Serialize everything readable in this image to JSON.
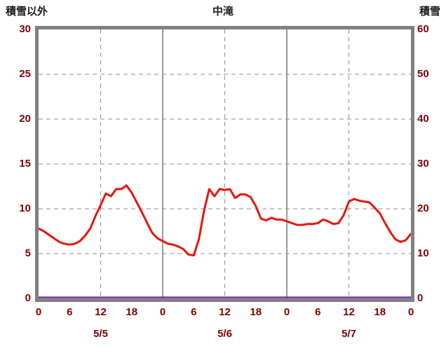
{
  "chart_data": {
    "type": "line",
    "title": "中滝",
    "left_axis": {
      "label": "積雪以外",
      "min": 0,
      "max": 30,
      "ticks": [
        0,
        5,
        10,
        15,
        20,
        25,
        30
      ]
    },
    "right_axis": {
      "label": "積雪",
      "min": 0,
      "max": 60,
      "ticks": [
        0,
        10,
        20,
        30,
        40,
        50,
        60
      ]
    },
    "x_axis": {
      "hours_total": 72,
      "tick_interval_hours": 6,
      "tick_labels": [
        "0",
        "6",
        "12",
        "18",
        "0",
        "6",
        "12",
        "18",
        "0",
        "6",
        "12",
        "18",
        "0"
      ],
      "day_labels": [
        "5/5",
        "5/6",
        "5/7"
      ]
    },
    "grid": {
      "h_dashed_values_left": [
        5,
        10,
        15,
        20,
        25
      ],
      "v_dashed_hours": [
        12,
        36,
        60
      ],
      "v_solid_hours": [
        24,
        48
      ]
    },
    "series": [
      {
        "name": "積雪以外",
        "axis": "left",
        "color": "#e8150d",
        "x_step_hours": 1,
        "values": [
          7.8,
          7.5,
          7.1,
          6.7,
          6.3,
          6.1,
          6.0,
          6.1,
          6.4,
          7.0,
          7.8,
          9.2,
          10.4,
          11.7,
          11.4,
          12.2,
          12.2,
          12.6,
          11.8,
          10.7,
          9.6,
          8.4,
          7.3,
          6.7,
          6.4,
          6.1,
          6.0,
          5.8,
          5.5,
          4.9,
          4.8,
          6.6,
          9.8,
          12.2,
          11.4,
          12.2,
          12.1,
          12.2,
          11.2,
          11.6,
          11.6,
          11.3,
          10.3,
          8.9,
          8.7,
          9.0,
          8.8,
          8.8,
          8.6,
          8.4,
          8.2,
          8.2,
          8.3,
          8.3,
          8.4,
          8.8,
          8.6,
          8.3,
          8.4,
          9.3,
          10.8,
          11.1,
          10.9,
          10.8,
          10.7,
          10.1,
          9.5,
          8.4,
          7.4,
          6.6,
          6.3,
          6.5,
          7.2
        ]
      },
      {
        "name": "積雪",
        "axis": "right",
        "color": "#7030a0",
        "constant_value": 0
      }
    ],
    "legend_position": "none",
    "grid_on": true
  },
  "colors": {
    "background": "#ffffff",
    "border": "#808080",
    "grid_dashed": "#8f8f8f",
    "grid_solid": "#808080",
    "tick_text": "#800000",
    "header_text": "#1a1a1a"
  }
}
